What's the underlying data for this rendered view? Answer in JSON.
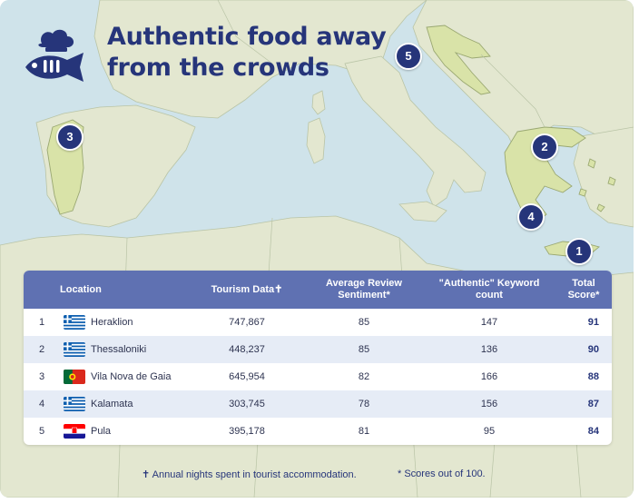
{
  "title": {
    "line1": "Authentic food away",
    "line2": "from the crowds"
  },
  "logo": {
    "icon": "fish-with-chef-hat-icon"
  },
  "markers": [
    "1",
    "2",
    "3",
    "4",
    "5"
  ],
  "table": {
    "headers": {
      "location": "Location",
      "tourism": "Tourism Data✝",
      "sentiment_1": "Average Review",
      "sentiment_2": "Sentiment*",
      "keyword_1": "\"Authentic\" Keyword",
      "keyword_2": "count",
      "score_1": "Total",
      "score_2": "Score*"
    },
    "rows": [
      {
        "rank": "1",
        "flag": "greece-flag-icon",
        "location": "Heraklion",
        "tourism": "747,867",
        "sentiment": "85",
        "keyword": "147",
        "score": "91"
      },
      {
        "rank": "2",
        "flag": "greece-flag-icon",
        "location": "Thessaloniki",
        "tourism": "448,237",
        "sentiment": "85",
        "keyword": "136",
        "score": "90"
      },
      {
        "rank": "3",
        "flag": "portugal-flag-icon",
        "location": "Vila Nova de Gaia",
        "tourism": "645,954",
        "sentiment": "82",
        "keyword": "166",
        "score": "88"
      },
      {
        "rank": "4",
        "flag": "greece-flag-icon",
        "location": "Kalamata",
        "tourism": "303,745",
        "sentiment": "78",
        "keyword": "156",
        "score": "87"
      },
      {
        "rank": "5",
        "flag": "croatia-flag-icon",
        "location": "Pula",
        "tourism": "395,178",
        "sentiment": "81",
        "keyword": "95",
        "score": "84"
      }
    ]
  },
  "footnotes": {
    "tourism_note": "✝ Annual nights spent in tourist accommodation.",
    "score_note": "* Scores out of 100."
  },
  "colors": {
    "navy": "#26357a",
    "header": "#5f71b2",
    "sea": "#cfe3ea",
    "land": "#e3e7d0",
    "highlight": "#d9e3a8"
  }
}
